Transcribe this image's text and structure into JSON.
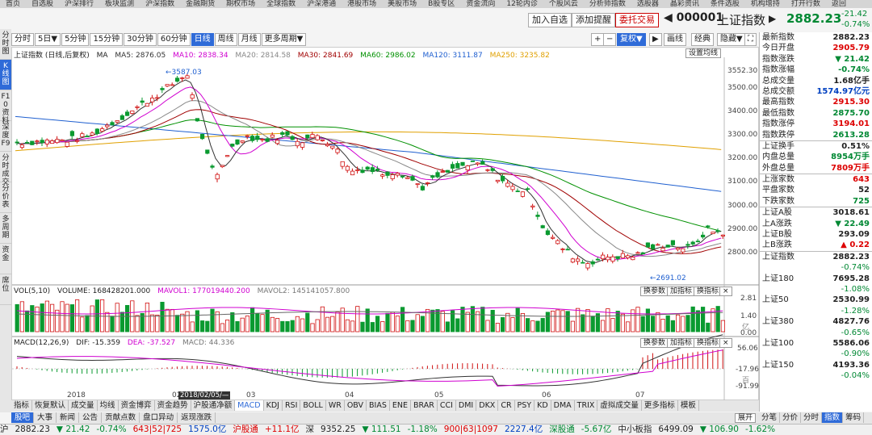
{
  "topmenu": [
    "首页",
    "自选股",
    "沪深排行",
    "板块监测",
    "沪深指数",
    "金融期货",
    "期权市场",
    "全球指数",
    "沪深港通",
    "港股市场",
    "美股市场",
    "B股专区",
    "资金流向",
    "12轮内诊",
    "个股风云",
    "分析师指数",
    "选股器",
    "晶彩资讯",
    "条件选股",
    "机构增持",
    "打开行数",
    "返回"
  ],
  "header": {
    "btn_add": "加入自选",
    "btn_alert": "添加提醒",
    "btn_trade": "委托交易",
    "code": "◀ 000001",
    "name": "上证指数",
    "arrow": "▶",
    "price": "2882.23",
    "change": "-21.42",
    "pct": "-0.74%"
  },
  "left_tabs": [
    "分时图",
    "K线图",
    "F10资料",
    "深度F9",
    "分时成交",
    "分价表",
    "多周期",
    "资金",
    "席位"
  ],
  "toolbar": {
    "periods": [
      "分时",
      "5日▼",
      "5分钟",
      "15分钟",
      "30分钟",
      "60分钟",
      "日线",
      "周线",
      "月线",
      "更多周期▼"
    ],
    "active_period": "日线",
    "plus": "+",
    "minus": "−",
    "adjust": "复权▼",
    "draw": "▶",
    "draw_btn": "画线",
    "classic": "经典",
    "hide": "隐藏▼"
  },
  "main_legend": {
    "title": "上证指数 (日线,后复权)",
    "ma": "MA",
    "ma5": "MA5: 2876.05",
    "ma10": "MA10: 2838.34",
    "ma20": "MA20: 2814.58",
    "ma30": "MA30: 2841.69",
    "ma60": "MA60: 2986.02",
    "ma120": "MA120: 3111.87",
    "ma250": "MA250: 3235.82",
    "settings_btn": "设置均线"
  },
  "annotations": {
    "high": "3587.03",
    "low": "2691.02"
  },
  "price_ticks": [
    "3552.30",
    "3500.00",
    "3400.00",
    "3300.00",
    "3200.00",
    "3100.00",
    "3000.00",
    "2900.00",
    "2800.00"
  ],
  "vol_legend": {
    "title": "VOL(5,10)",
    "volume": "VOLUME: 168428201.000",
    "mavol1": "MAVOL1: 177019440.200",
    "mavol2": "MAVOL2: 145141057.800"
  },
  "vol_ticks": [
    "2.81",
    "1.40",
    "0.00"
  ],
  "vol_unit": "亿",
  "macd_legend": {
    "title": "MACD(12,26,9)",
    "dif": "DIF: -15.359",
    "dea": "DEA: -37.527",
    "macd": "MACD: 44.336"
  },
  "macd_ticks": [
    "56.06",
    "-17.96",
    "-91.99"
  ],
  "macd_unit": "百",
  "panel_buttons": {
    "exchange": "换参数",
    "add": "加指标",
    "replace": "换指标",
    "close": "×"
  },
  "time_labels": [
    "2018",
    "02",
    "03",
    "04",
    "05",
    "06",
    "07"
  ],
  "cursor_date": "2018/02/05/—",
  "indicator_tabs": [
    "指标",
    "恢复默认",
    "成交量",
    "均线",
    "资金博弈",
    "资金趋势",
    "沪股通净额",
    "MACD",
    "KDJ",
    "RSI",
    "BOLL",
    "WR",
    "OBV",
    "BIAS",
    "ENE",
    "BRAR",
    "CCI",
    "DMI",
    "DKX",
    "CR",
    "PSY",
    "KD",
    "DMA",
    "TRIX",
    "虚拟成交量",
    "更多指标",
    "模板"
  ],
  "indicator_active": "MACD",
  "info_tabs": [
    "股吧",
    "大事",
    "新闻",
    "公告",
    "贡献点数",
    "盘口异动",
    "返现涨跌"
  ],
  "info_active": "股吧",
  "right_rows_a": [
    {
      "k": "最新指数",
      "v": "2882.23",
      "c": "blk"
    },
    {
      "k": "今日开盘",
      "v": "2905.79",
      "c": "red"
    },
    {
      "k": "指数涨跌",
      "v": "▼ 21.42",
      "c": "grn"
    },
    {
      "k": "指数涨幅",
      "v": "-0.74%",
      "c": "grn"
    },
    {
      "k": "总成交量",
      "v": "1.68亿手",
      "c": "blk"
    },
    {
      "k": "总成交额",
      "v": "1574.97亿元",
      "c": "blu"
    },
    {
      "k": "最高指数",
      "v": "2915.30",
      "c": "red"
    },
    {
      "k": "最低指数",
      "v": "2875.70",
      "c": "grn"
    },
    {
      "k": "指数涨停",
      "v": "3194.01",
      "c": "red"
    },
    {
      "k": "指数跌停",
      "v": "2613.28",
      "c": "grn"
    }
  ],
  "right_rows_b": [
    {
      "k": "上证换手",
      "v": "0.51%",
      "c": "blk"
    },
    {
      "k": "内盘总量",
      "v": "8954万手",
      "c": "grn"
    },
    {
      "k": "外盘总量",
      "v": "7809万手",
      "c": "red"
    }
  ],
  "right_rows_c": [
    {
      "k": "上涨家数",
      "v": "643",
      "c": "red"
    },
    {
      "k": "平盘家数",
      "v": "52",
      "c": "blk"
    },
    {
      "k": "下跌家数",
      "v": "725",
      "c": "grn"
    }
  ],
  "right_rows_d": [
    {
      "k": "上证A股",
      "v": "3018.61",
      "c": "blk"
    },
    {
      "k": "上A涨跌",
      "v": "▼ 22.49",
      "c": "grn"
    },
    {
      "k": "上证B股",
      "v": "293.09",
      "c": "blk"
    },
    {
      "k": "上B涨跌",
      "v": "▲ 0.22",
      "c": "red"
    }
  ],
  "right_list": [
    {
      "k": "上证指数",
      "v": "2882.23",
      "p": "-0.74%"
    },
    {
      "k": "上证180",
      "v": "7695.28",
      "p": "-1.08%"
    },
    {
      "k": "上证50",
      "v": "2530.99",
      "p": "-1.28%"
    },
    {
      "k": "上证380",
      "v": "4827.76",
      "p": "-0.65%"
    },
    {
      "k": "上证100",
      "v": "5586.06",
      "p": "-0.90%"
    },
    {
      "k": "上证150",
      "v": "4193.36",
      "p": "-0.04%"
    }
  ],
  "expand_btn": "展开",
  "right_tabs": [
    "分笔",
    "分价",
    "分时",
    "指数",
    "筹码"
  ],
  "right_active": "指数",
  "ticker": [
    {
      "t": "沪",
      "c": "blk"
    },
    {
      "t": "2882.23",
      "c": "blk"
    },
    {
      "t": "▼ 21.42",
      "c": "grn"
    },
    {
      "t": "-0.74%",
      "c": "grn"
    },
    {
      "t": "643|52|725",
      "c": "red"
    },
    {
      "t": "1575.0亿",
      "c": "blu"
    },
    {
      "t": "沪股通",
      "c": "red"
    },
    {
      "t": "+11.1亿",
      "c": "red"
    },
    {
      "t": "深",
      "c": "blk"
    },
    {
      "t": "9352.25",
      "c": "blk"
    },
    {
      "t": "▼ 111.51",
      "c": "grn"
    },
    {
      "t": "-1.18%",
      "c": "grn"
    },
    {
      "t": "900|63|1097",
      "c": "red"
    },
    {
      "t": "2227.4亿",
      "c": "blu"
    },
    {
      "t": "深股通",
      "c": "grn"
    },
    {
      "t": "-5.67亿",
      "c": "grn"
    },
    {
      "t": "中小板指",
      "c": "blk"
    },
    {
      "t": "6499.09",
      "c": "blk"
    },
    {
      "t": "▼ 106.90",
      "c": "grn"
    },
    {
      "t": "-1.62%",
      "c": "grn"
    }
  ],
  "colors": {
    "up": "#d01010",
    "down": "#0a9a30",
    "ma5": "#333333",
    "ma10": "#d000d0",
    "ma20": "#888888",
    "ma30": "#a00000",
    "ma60": "#009000",
    "ma120": "#2060d0",
    "ma250": "#e0a000"
  }
}
